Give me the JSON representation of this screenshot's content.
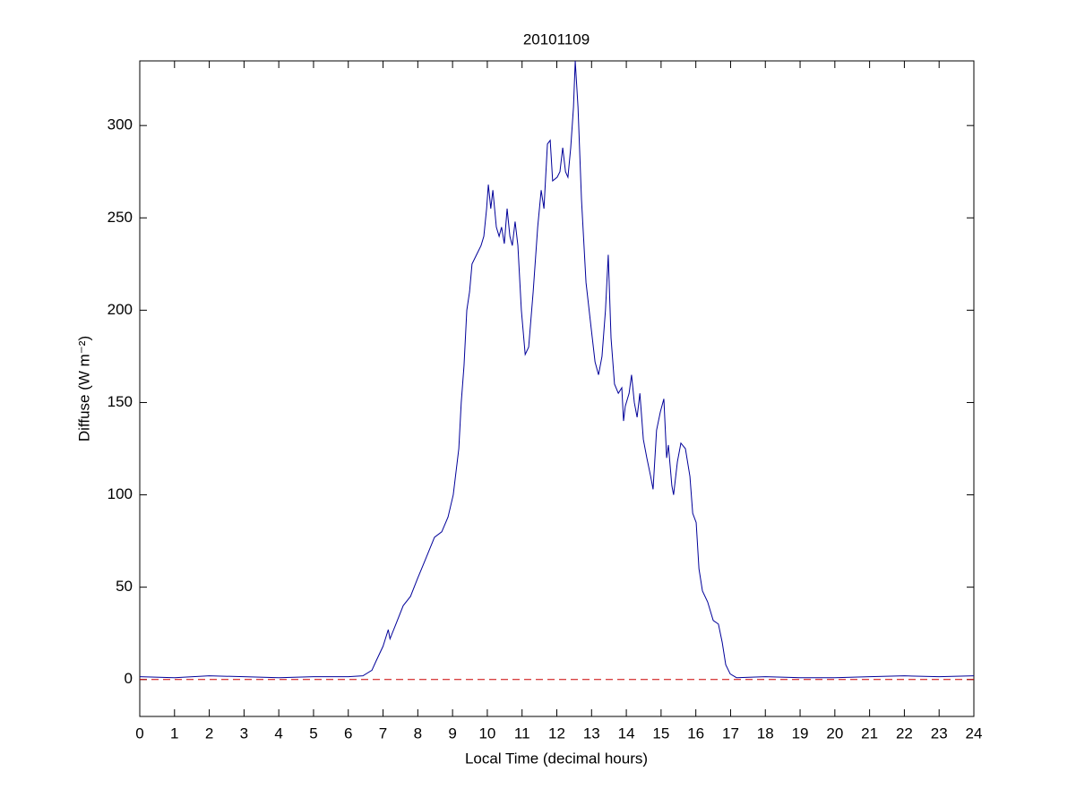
{
  "chart_data": {
    "type": "line",
    "title": "20101109",
    "xlabel": "Local Time (decimal hours)",
    "ylabel": "Diffuse (W m⁻²)",
    "xlim": [
      0,
      24
    ],
    "ylim": [
      -20,
      335
    ],
    "xticks": [
      0,
      1,
      2,
      3,
      4,
      5,
      6,
      7,
      8,
      9,
      10,
      11,
      12,
      13,
      14,
      15,
      16,
      17,
      18,
      19,
      20,
      21,
      22,
      23,
      24
    ],
    "yticks": [
      0,
      50,
      100,
      150,
      200,
      250,
      300
    ],
    "hline": {
      "value": 0,
      "color": "#cc0000"
    },
    "series": [
      {
        "color": "#000099",
        "x": [
          0,
          1,
          2,
          3,
          4,
          5,
          6,
          6.42,
          6.68,
          6.8,
          7.0,
          7.15,
          7.2,
          7.37,
          7.58,
          7.79,
          8.0,
          8.22,
          8.48,
          8.69,
          8.87,
          9.02,
          9.18,
          9.25,
          9.33,
          9.41,
          9.49,
          9.56,
          9.69,
          9.82,
          9.9,
          9.98,
          10.03,
          10.1,
          10.16,
          10.26,
          10.34,
          10.41,
          10.49,
          10.57,
          10.65,
          10.72,
          10.8,
          10.88,
          10.98,
          11.09,
          11.19,
          11.32,
          11.45,
          11.55,
          11.63,
          11.73,
          11.81,
          11.88,
          12.01,
          12.09,
          12.17,
          12.25,
          12.32,
          12.4,
          12.48,
          12.53,
          12.61,
          12.71,
          12.84,
          12.99,
          13.1,
          13.2,
          13.3,
          13.4,
          13.48,
          13.56,
          13.66,
          13.77,
          13.87,
          13.92,
          13.97,
          14.08,
          14.15,
          14.23,
          14.31,
          14.39,
          14.49,
          14.59,
          14.7,
          14.77,
          14.87,
          14.98,
          15.08,
          15.16,
          15.21,
          15.31,
          15.36,
          15.47,
          15.57,
          15.7,
          15.83,
          15.91,
          16.01,
          16.09,
          16.19,
          16.34,
          16.5,
          16.65,
          16.76,
          16.86,
          16.99,
          17.17,
          18,
          19,
          20,
          21,
          22,
          23,
          24
        ],
        "values": [
          1.5,
          1,
          2,
          1.5,
          1,
          1.5,
          1.5,
          2,
          5,
          10,
          18,
          27,
          22,
          30,
          40,
          45,
          55,
          65,
          77,
          80,
          88,
          100,
          125,
          150,
          170,
          200,
          210,
          225,
          230,
          235,
          240,
          255,
          268,
          255,
          265,
          245,
          240,
          245,
          236,
          255,
          240,
          235,
          248,
          235,
          200,
          176,
          180,
          210,
          245,
          265,
          255,
          290,
          292,
          270,
          272,
          275,
          288,
          275,
          272,
          288,
          310,
          335,
          310,
          260,
          215,
          190,
          172,
          165,
          175,
          200,
          230,
          185,
          160,
          155,
          158,
          140,
          148,
          155,
          165,
          150,
          142,
          155,
          130,
          120,
          110,
          103,
          135,
          145,
          152,
          120,
          127,
          105,
          100,
          118,
          128,
          125,
          110,
          90,
          85,
          60,
          48,
          42,
          32,
          30,
          20,
          8,
          3,
          1,
          1.5,
          1,
          1,
          1.5,
          2,
          1.5,
          2
        ]
      }
    ]
  }
}
